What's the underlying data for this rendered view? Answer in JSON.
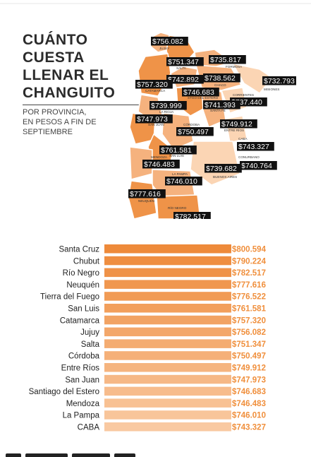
{
  "title_lines": [
    "CUÁNTO",
    "CUESTA",
    "LLENAR EL",
    "CHANGUITO"
  ],
  "subtitle_lines": [
    "POR PROVINCIA,",
    "EN PESOS A FIN DE",
    "SEPTIEMBRE"
  ],
  "colors": {
    "bar_dark": "#ee8a3a",
    "bar_light": "#f9c9a1",
    "value_text": "#f08f3c",
    "label_text": "#222222",
    "map_dark": "#ef9348",
    "map_mid": "#f5b27e",
    "map_light": "#fbd5b4",
    "map_border": "#ffffff",
    "tag_bg": "#111111",
    "tag_text": "#ffffff"
  },
  "map": {
    "value_tags": [
      {
        "province": "Jujuy",
        "value": "$756.082",
        "name_text": "JUJUY"
      },
      {
        "province": "Salta",
        "value": "$751.347",
        "name_text": "SALTA"
      },
      {
        "province": "Formosa",
        "value": "$735.817",
        "name_text": "FORMOSA"
      },
      {
        "province": "Misiones",
        "value": "$732.793",
        "name_text": "MISIONES"
      },
      {
        "province": "Tucumán",
        "value": "$742.892",
        "name_text": "TUCUMÁN"
      },
      {
        "province": "Catamarca",
        "value": "$757.320",
        "name_text": "CATAMARCA"
      },
      {
        "province": "Chaco",
        "value": "$738.562",
        "name_text": "CHACO"
      },
      {
        "province": "Santiago del Estero",
        "value": "$746.683",
        "name_text": "STGO DEL ESTERO"
      },
      {
        "province": "Corrientes",
        "value": "$737.440",
        "name_text": "CORRIENTES"
      },
      {
        "province": "La Rioja",
        "value": "$739.999",
        "name_text": "LA RIOJA"
      },
      {
        "province": "Santa Fe",
        "value": "$741.393",
        "name_text": "SANTA FE"
      },
      {
        "province": "San Juan",
        "value": "$747.973",
        "name_text": "SAN JUAN"
      },
      {
        "province": "Córdoba",
        "value": "$750.497",
        "name_text": "CÓRDOBA"
      },
      {
        "province": "Entre Ríos",
        "value": "$749.912",
        "name_text": "ENTRE RÍOS"
      },
      {
        "province": "San Luis",
        "value": "$761.581",
        "name_text": "SAN LUIS"
      },
      {
        "province": "CABA",
        "value": "$743.327",
        "name_text": "CABA"
      },
      {
        "province": "Mendoza",
        "value": "$746.483",
        "name_text": "MENDOZA"
      },
      {
        "province": "Conurbano",
        "value": "$740.764",
        "name_text": "CONURBANO"
      },
      {
        "province": "Buenos Aires",
        "value": "$739.682",
        "name_text": "BUENOS AIRES"
      },
      {
        "province": "La Pampa",
        "value": "$746.010",
        "name_text": "LA PAMPA"
      },
      {
        "province": "Neuquén",
        "value": "$777.616",
        "name_text": "NEUQUÉN"
      },
      {
        "province": "Río Negro",
        "value": "$782.517",
        "name_text": "RÍO NEGRO"
      }
    ]
  },
  "chart_data": {
    "type": "bar",
    "orientation": "horizontal",
    "categories": [
      "Santa Cruz",
      "Chubut",
      "Río Negro",
      "Neuquén",
      "Tierra del Fuego",
      "San Luis",
      "Catamarca",
      "Jujuy",
      "Salta",
      "Córdoba",
      "Entre Ríos",
      "San Juan",
      "Santiago del Estero",
      "Mendoza",
      "La Pampa",
      "CABA"
    ],
    "values": [
      800594,
      790224,
      782517,
      777616,
      776522,
      761581,
      757320,
      756082,
      751347,
      750497,
      749912,
      747973,
      746683,
      746483,
      746010,
      743327
    ],
    "value_labels": [
      "$800.594",
      "$790.224",
      "$782.517",
      "$777.616",
      "$776.522",
      "$761.581",
      "$757.320",
      "$756.082",
      "$751.347",
      "$750.497",
      "$749.912",
      "$747.973",
      "$746.683",
      "$746.483",
      "$746.010",
      "$743.327"
    ],
    "xlim": [
      735000,
      800594
    ],
    "title": "",
    "xlabel": "",
    "ylabel": "",
    "grid": false,
    "legend": "none"
  }
}
